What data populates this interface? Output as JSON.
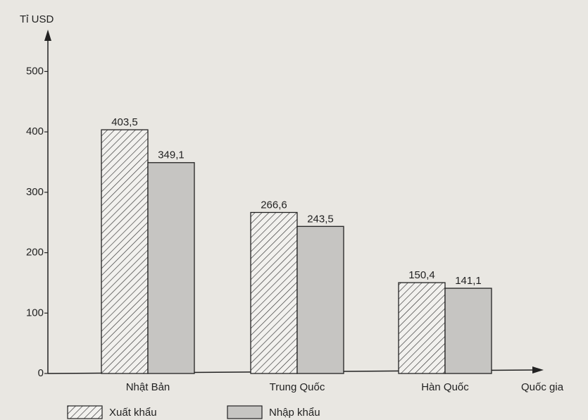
{
  "chart_data": {
    "type": "bar",
    "y_label": "Tỉ USD",
    "x_label": "Quốc gia",
    "categories": [
      "Nhật Bản",
      "Trung Quốc",
      "Hàn Quốc"
    ],
    "series": [
      {
        "name": "Xuất khẩu",
        "color": "#f2f1ee",
        "pattern": "hatch",
        "values": [
          403.5,
          266.6,
          150.4
        ],
        "value_labels": [
          "403,5",
          "266,6",
          "150,4"
        ]
      },
      {
        "name": "Nhập khẩu",
        "color": "#c6c5c2",
        "values": [
          349.1,
          243.5,
          141.1
        ],
        "value_labels": [
          "349,1",
          "243,5",
          "141,1"
        ]
      }
    ],
    "ylim": [
      0,
      560
    ],
    "yticks": [
      0,
      100,
      200,
      300,
      400,
      500
    ]
  }
}
